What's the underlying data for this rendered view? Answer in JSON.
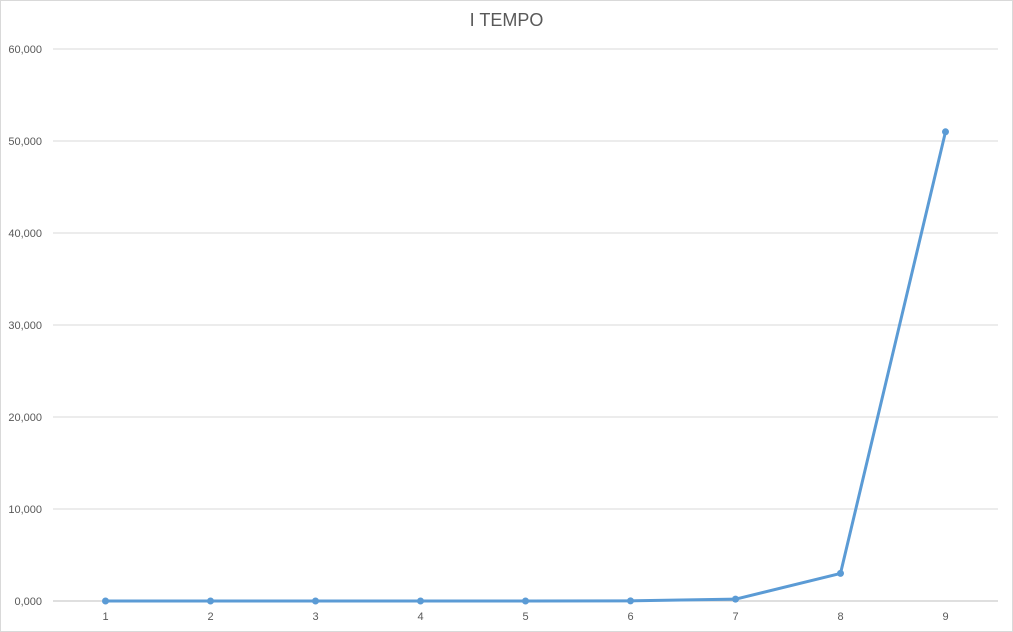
{
  "chart_data": {
    "type": "line",
    "title": "I TEMPO",
    "xlabel": "",
    "ylabel": "",
    "categories": [
      "1",
      "2",
      "3",
      "4",
      "5",
      "6",
      "7",
      "8",
      "9"
    ],
    "series": [
      {
        "values": [
          0,
          0,
          0,
          0,
          1,
          15,
          200,
          3000,
          51000
        ]
      }
    ],
    "ylim": [
      0,
      60000
    ],
    "yticks": [
      0,
      10000,
      20000,
      30000,
      40000,
      50000,
      60000
    ],
    "ytick_labels": [
      "0,000",
      "10,000",
      "20,000",
      "30,000",
      "40,000",
      "50,000",
      "60,000"
    ],
    "grid": true,
    "legend": "none",
    "colors": {
      "series": "#5b9bd5",
      "grid": "#d9d9d9",
      "axis": "#bfbfbf",
      "text": "#595959"
    }
  }
}
